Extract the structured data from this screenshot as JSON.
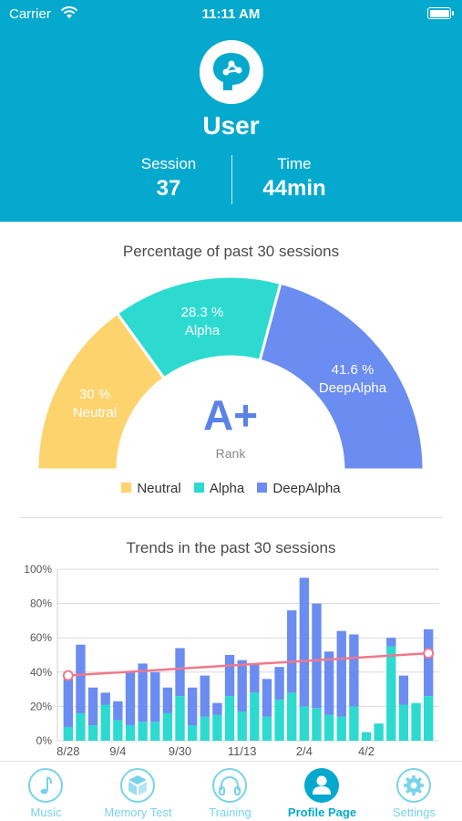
{
  "status_bar": {
    "carrier": "Carrier",
    "time": "11:11 AM"
  },
  "profile": {
    "user_name": "User",
    "session_label": "Session",
    "session_value": "37",
    "time_label": "Time",
    "time_value": "44min"
  },
  "gauge_section": {
    "title": "Percentage of past 30 sessions",
    "neutral_percent": "30 %",
    "neutral_name": "Neutral",
    "alpha_percent": "28.3 %",
    "alpha_name": "Alpha",
    "deepalpha_percent": "41.6 %",
    "deepalpha_name": "DeepAlpha",
    "rank_value": "A+",
    "rank_label": "Rank",
    "legend": [
      "Neutral",
      "Alpha",
      "DeepAlpha"
    ]
  },
  "colors": {
    "header": "#06A9CE",
    "neutral": "#FDD36E",
    "alpha": "#2DDAD0",
    "deepalpha": "#6B8CF0",
    "trend_line": "#F0788C",
    "tab_active": "#06A9CE",
    "tab_inactive": "#78D3EA"
  },
  "trend_section": {
    "title": "Trends in the past 30 sessions"
  },
  "chart_data": [
    {
      "type": "pie",
      "title": "Percentage of past 30 sessions",
      "categories": [
        "Neutral",
        "Alpha",
        "DeepAlpha"
      ],
      "values": [
        30,
        28.3,
        41.6
      ],
      "center_text": "A+",
      "center_subtext": "Rank",
      "legend": "bottom"
    },
    {
      "type": "bar",
      "title": "Trends in the past 30 sessions",
      "stacked": true,
      "ylim": [
        0,
        100
      ],
      "y_ticks": [
        "0%",
        "20%",
        "40%",
        "60%",
        "80%",
        "100%"
      ],
      "x_tick_labels": [
        {
          "index": 0,
          "label": "8/28"
        },
        {
          "index": 4,
          "label": "9/4"
        },
        {
          "index": 9,
          "label": "9/30"
        },
        {
          "index": 14,
          "label": "11/13"
        },
        {
          "index": 19,
          "label": "2/4"
        },
        {
          "index": 24,
          "label": "4/2"
        }
      ],
      "grid": true,
      "series": [
        {
          "name": "Alpha",
          "values": [
            8,
            16,
            9,
            21,
            12,
            9,
            11,
            11,
            16,
            26,
            9,
            14,
            15,
            26,
            17,
            28,
            14,
            24,
            28,
            20,
            19,
            15,
            14,
            20,
            5,
            10,
            55,
            21,
            22,
            26
          ]
        },
        {
          "name": "DeepAlpha",
          "values": [
            28,
            40,
            22,
            7,
            11,
            31,
            34,
            29,
            15,
            28,
            22,
            24,
            7,
            24,
            30,
            17,
            22,
            19,
            48,
            75,
            61,
            37,
            50,
            42,
            0,
            0,
            5,
            17,
            0,
            39
          ]
        }
      ],
      "trend_line": {
        "start": 38,
        "end": 51
      }
    }
  ],
  "tabs": [
    {
      "label": "Music",
      "icon": "music-note-icon"
    },
    {
      "label": "Memory Test",
      "icon": "cube-icon"
    },
    {
      "label": "Training",
      "icon": "headphones-icon"
    },
    {
      "label": "Profile Page",
      "icon": "person-icon"
    },
    {
      "label": "Settings",
      "icon": "gear-icon"
    }
  ]
}
